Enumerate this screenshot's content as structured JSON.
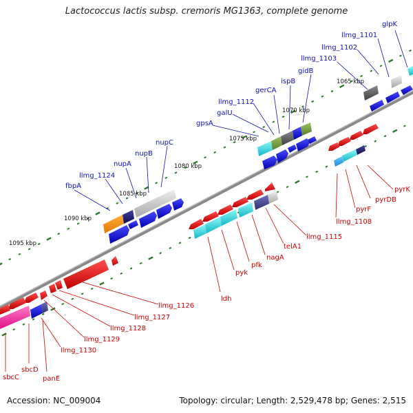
{
  "title": "Lactococcus lactis subsp. cremoris MG1363, complete genome",
  "footer": {
    "accession": "Accession: NC_009004",
    "topology": "Topology: circular; Length: 2,529,478 bp; Genes: 2,515"
  },
  "colors": {
    "forward_label": "#1010c0",
    "reverse_label": "#d00000",
    "backbone": "#8a8a8a",
    "tick": "#2a7a2a"
  },
  "scale_labels": [
    "1065 kbp",
    "1070 kbp",
    "1075 kbp",
    "1080 kbp",
    "1085 kbp",
    "1090 kbp",
    "1095 kbp"
  ],
  "forward_genes": [
    "glpK",
    "llmg_1101",
    "llmg_1102",
    "llmg_1103",
    "gidB",
    "ispB",
    "gerCA",
    "llmg_1112",
    "galU",
    "gpsA",
    "nupC",
    "nupB",
    "nupA",
    "llmg_1124",
    "fbpA"
  ],
  "reverse_genes": [
    "pyrK",
    "pyrDB",
    "pyrF",
    "llmg_1108",
    "llmg_1115",
    "telA1",
    "nagA",
    "pfk",
    "pyk",
    "ldh",
    "llmg_1126",
    "llmg_1127",
    "llmg_1128",
    "llmg_1129",
    "llmg_1130",
    "panE",
    "sbcD",
    "sbcC"
  ]
}
